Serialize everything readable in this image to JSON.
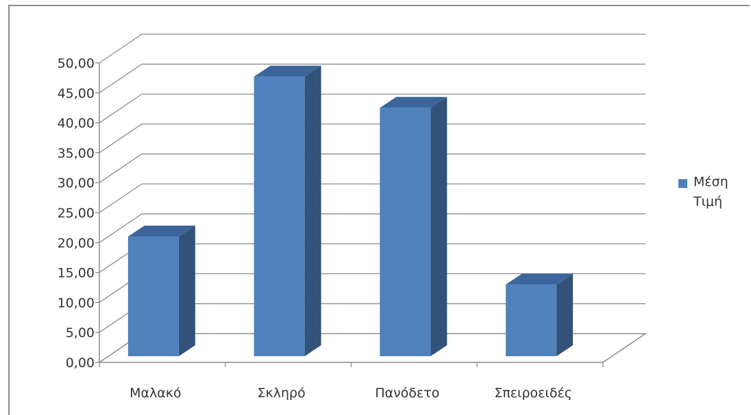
{
  "chart_data": {
    "type": "bar",
    "title": "",
    "xlabel": "",
    "ylabel": "",
    "categories": [
      "Μαλακό",
      "Σκληρό",
      "Πανόδετο",
      "Σπειροειδές"
    ],
    "series": [
      {
        "name": "Μέση Τιμή",
        "name_lines": [
          "Μέση",
          "Τιμή"
        ],
        "values": [
          21.0,
          47.7,
          42.5,
          13.0
        ]
      }
    ],
    "ylim": [
      0,
      50
    ],
    "yticks": [
      "0,00",
      "5,00",
      "10,00",
      "15,00",
      "20,00",
      "25,00",
      "30,00",
      "35,00",
      "40,00",
      "45,00",
      "50,00"
    ],
    "grid": true,
    "legend_position": "right",
    "colors": {
      "bar_front": "#4f81bd",
      "bar_side": "#33527a",
      "bar_top": "#3c659b",
      "grid": "#8c8c8c"
    }
  }
}
